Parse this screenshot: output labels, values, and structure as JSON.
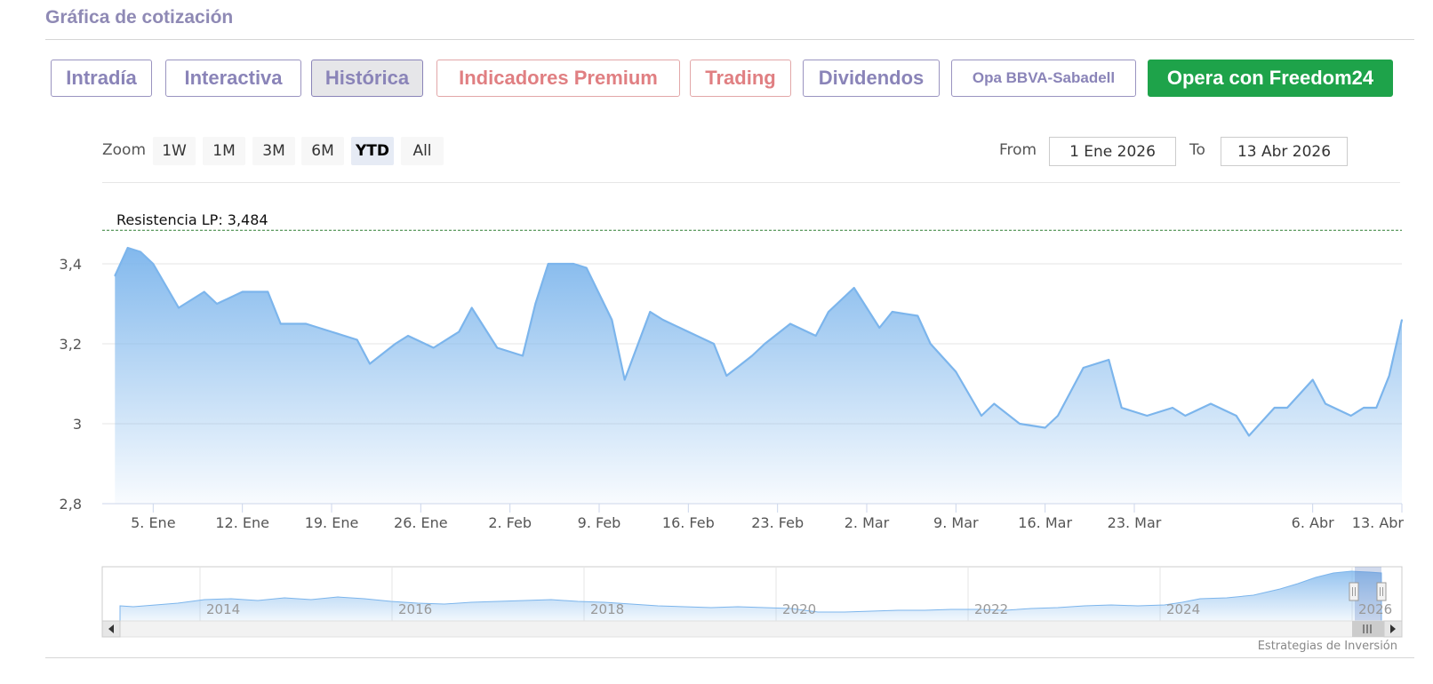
{
  "section_title": "Gráfica de cotización",
  "tabs": [
    {
      "label": "Intradía",
      "style": "normal"
    },
    {
      "label": "Interactiva",
      "style": "normal"
    },
    {
      "label": "Histórica",
      "style": "active"
    },
    {
      "label": "Indicadores Premium",
      "style": "red"
    },
    {
      "label": "Trading",
      "style": "red"
    },
    {
      "label": "Dividendos",
      "style": "normal"
    },
    {
      "label": "Opa BBVA-Sabadell",
      "style": "small"
    },
    {
      "label": "Opera con Freedom24",
      "style": "green"
    }
  ],
  "zoom": {
    "label": "Zoom",
    "buttons": [
      "1W",
      "1M",
      "3M",
      "6M",
      "YTD",
      "All"
    ],
    "selected": "YTD"
  },
  "range": {
    "from_label": "From",
    "from_value": "1 Ene 2026",
    "to_label": "To",
    "to_value": "13 Abr 2026"
  },
  "colors": {
    "accent": "#8f8ab5",
    "series_line": "#7cb5ec",
    "resistance_line": "#2e7d32",
    "green_button": "#1ea34a",
    "red_tab": "#e07f82"
  },
  "chart_data": {
    "type": "area",
    "title": "",
    "xlabel": "",
    "ylabel": "",
    "ylim": [
      2.8,
      3.5
    ],
    "y_ticks": [
      "2,8",
      "3",
      "3,2",
      "3,4"
    ],
    "grid": true,
    "x_tick_labels": [
      "5. Ene",
      "12. Ene",
      "19. Ene",
      "26. Ene",
      "2. Feb",
      "9. Feb",
      "16. Feb",
      "23. Feb",
      "2. Mar",
      "9. Mar",
      "16. Mar",
      "23. Mar",
      "6. Abr",
      "13. Abr"
    ],
    "series": [
      {
        "x": [
          "2026-01-02",
          "2026-01-03",
          "2026-01-04",
          "2026-01-05",
          "2026-01-07",
          "2026-01-09",
          "2026-01-10",
          "2026-01-12",
          "2026-01-14",
          "2026-01-15",
          "2026-01-17",
          "2026-01-19",
          "2026-01-21",
          "2026-01-22",
          "2026-01-24",
          "2026-01-25",
          "2026-01-27",
          "2026-01-29",
          "2026-01-30",
          "2026-02-01",
          "2026-02-03",
          "2026-02-04",
          "2026-02-05",
          "2026-02-07",
          "2026-02-08",
          "2026-02-10",
          "2026-02-11",
          "2026-02-13",
          "2026-02-14",
          "2026-02-16",
          "2026-02-18",
          "2026-02-19",
          "2026-02-21",
          "2026-02-22",
          "2026-02-24",
          "2026-02-26",
          "2026-02-27",
          "2026-03-01",
          "2026-03-03",
          "2026-03-04",
          "2026-03-06",
          "2026-03-07",
          "2026-03-09",
          "2026-03-11",
          "2026-03-12",
          "2026-03-14",
          "2026-03-16",
          "2026-03-17",
          "2026-03-19",
          "2026-03-21",
          "2026-03-22",
          "2026-03-24",
          "2026-03-26",
          "2026-03-27",
          "2026-03-29",
          "2026-03-31",
          "2026-04-01",
          "2026-04-03",
          "2026-04-04",
          "2026-04-06",
          "2026-04-07",
          "2026-04-09",
          "2026-04-10",
          "2026-04-11",
          "2026-04-12",
          "2026-04-13"
        ],
        "y": [
          3.37,
          3.44,
          3.43,
          3.4,
          3.29,
          3.33,
          3.3,
          3.33,
          3.33,
          3.25,
          3.25,
          3.23,
          3.21,
          3.15,
          3.2,
          3.22,
          3.19,
          3.23,
          3.29,
          3.19,
          3.17,
          3.3,
          3.4,
          3.4,
          3.39,
          3.26,
          3.11,
          3.28,
          3.26,
          3.23,
          3.2,
          3.12,
          3.17,
          3.2,
          3.25,
          3.22,
          3.28,
          3.34,
          3.24,
          3.28,
          3.27,
          3.2,
          3.13,
          3.02,
          3.05,
          3.0,
          2.99,
          3.02,
          3.14,
          3.16,
          3.04,
          3.02,
          3.04,
          3.02,
          3.05,
          3.02,
          2.97,
          3.04,
          3.04,
          3.11,
          3.05,
          3.02,
          3.04,
          3.04,
          3.12,
          3.26
        ]
      }
    ],
    "annotations": [
      {
        "type": "horizontal_line",
        "value": 3.484,
        "label": "Resistencia LP: 3,484"
      }
    ],
    "navigator": {
      "x_tick_labels": [
        "2014",
        "2016",
        "2018",
        "2020",
        "2022",
        "2024",
        "2026"
      ]
    }
  },
  "credit": "Estrategias de Inversión"
}
